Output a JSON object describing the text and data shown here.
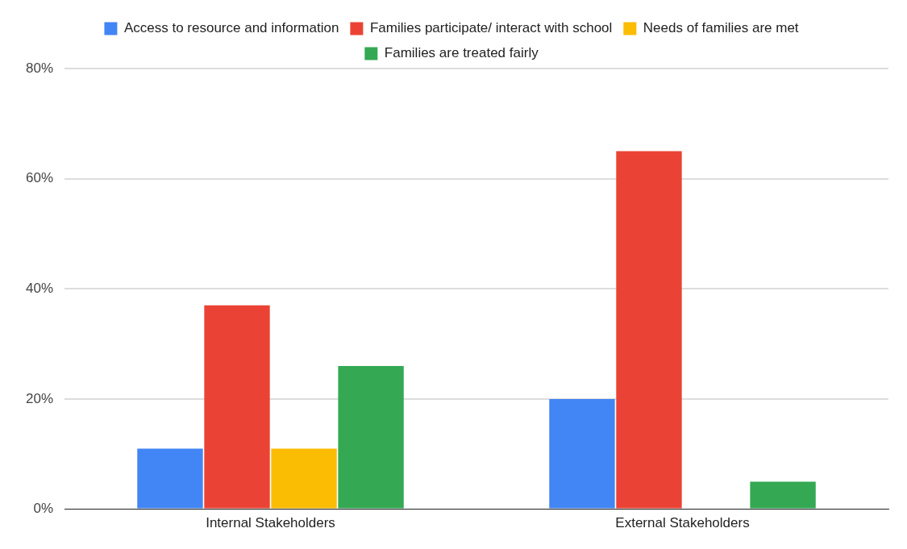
{
  "chart_data": {
    "type": "bar",
    "categories": [
      "Internal Stakeholders",
      "External Stakeholders"
    ],
    "series": [
      {
        "name": "Access to resource and information",
        "color": "#4285f4",
        "values": [
          11,
          20
        ]
      },
      {
        "name": "Families participate/ interact with school",
        "color": "#ea4335",
        "values": [
          37,
          65
        ]
      },
      {
        "name": "Needs of families are met",
        "color": "#fbbc04",
        "values": [
          11,
          0
        ]
      },
      {
        "name": "Families are treated fairly",
        "color": "#34a853",
        "values": [
          26,
          5
        ]
      }
    ],
    "ylim": [
      0,
      80
    ],
    "yticks": [
      {
        "value": 0,
        "label": "0%"
      },
      {
        "value": 20,
        "label": "20%"
      },
      {
        "value": 40,
        "label": "40%"
      },
      {
        "value": 60,
        "label": "60%"
      },
      {
        "value": 80,
        "label": "80%"
      }
    ],
    "grid": "y",
    "legend": "top"
  }
}
